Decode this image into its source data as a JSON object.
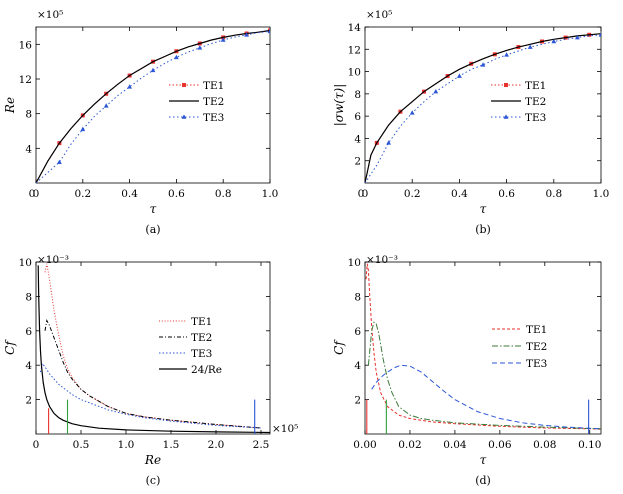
{
  "chart_data": [
    {
      "panel": "a",
      "type": "line",
      "caption": "(a)",
      "xlabel": "τ",
      "ylabel": "Re",
      "multiplier": "×10⁵",
      "xlim": [
        0,
        1.0
      ],
      "ylim": [
        0,
        18
      ],
      "xticks": [
        0,
        0.2,
        0.4,
        0.6,
        0.8,
        1.0
      ],
      "xtick_labels": [
        "0",
        "0.2",
        "0.4",
        "0.6",
        "0.8",
        "1.0"
      ],
      "yticks": [
        4,
        8,
        12,
        16
      ],
      "ytick_labels": [
        "4",
        "8",
        "12",
        "16"
      ],
      "legend_position": "right",
      "series": [
        {
          "name": "TE1",
          "color": "#e8322e",
          "dash": "1.5,2",
          "marker": "square",
          "markers_every": 2,
          "x": [
            0,
            0.05,
            0.1,
            0.15,
            0.2,
            0.25,
            0.3,
            0.35,
            0.4,
            0.45,
            0.5,
            0.55,
            0.6,
            0.65,
            0.7,
            0.75,
            0.8,
            0.85,
            0.9,
            0.95,
            1.0
          ],
          "y": [
            0,
            2.5,
            4.6,
            6.3,
            7.8,
            9.1,
            10.3,
            11.4,
            12.4,
            13.2,
            14.0,
            14.6,
            15.2,
            15.7,
            16.1,
            16.5,
            16.8,
            17.05,
            17.25,
            17.4,
            17.6
          ]
        },
        {
          "name": "TE2",
          "color": "#000000",
          "dash": "",
          "marker": "none",
          "x": [
            0,
            0.05,
            0.1,
            0.15,
            0.2,
            0.25,
            0.3,
            0.35,
            0.4,
            0.45,
            0.5,
            0.55,
            0.6,
            0.65,
            0.7,
            0.75,
            0.8,
            0.85,
            0.9,
            0.95,
            1.0
          ],
          "y": [
            0,
            2.5,
            4.6,
            6.3,
            7.8,
            9.1,
            10.3,
            11.4,
            12.4,
            13.2,
            14.0,
            14.6,
            15.2,
            15.7,
            16.1,
            16.5,
            16.8,
            17.05,
            17.25,
            17.4,
            17.6
          ]
        },
        {
          "name": "TE3",
          "color": "#2b56d4",
          "dash": "1.5,2.5",
          "marker": "triangle",
          "markers_every": 2,
          "x": [
            0,
            0.05,
            0.1,
            0.15,
            0.2,
            0.25,
            0.3,
            0.35,
            0.4,
            0.45,
            0.5,
            0.55,
            0.6,
            0.65,
            0.7,
            0.75,
            0.8,
            0.85,
            0.9,
            0.95,
            1.0
          ],
          "y": [
            0,
            1.2,
            2.4,
            4.5,
            6.2,
            7.7,
            8.9,
            10.1,
            11.1,
            12.1,
            13.0,
            13.8,
            14.5,
            15.1,
            15.6,
            16.1,
            16.5,
            16.85,
            17.1,
            17.35,
            17.5
          ]
        }
      ]
    },
    {
      "panel": "b",
      "type": "line",
      "caption": "(b)",
      "xlabel": "τ",
      "ylabel": "|σw(τ)|",
      "multiplier": "×10⁵",
      "xlim": [
        0,
        1.0
      ],
      "ylim": [
        0,
        14
      ],
      "xticks": [
        0,
        0.2,
        0.4,
        0.6,
        0.8,
        1.0
      ],
      "xtick_labels": [
        "0",
        "0.2",
        "0.4",
        "0.6",
        "0.8",
        "1.0"
      ],
      "yticks": [
        2,
        4,
        6,
        8,
        10,
        12,
        14
      ],
      "ytick_labels": [
        "2",
        "4",
        "6",
        "8",
        "10",
        "12",
        "14"
      ],
      "legend_position": "right",
      "series": [
        {
          "name": "TE1",
          "color": "#e8322e",
          "dash": "1.5,2",
          "marker": "square",
          "markers_every": 2,
          "x": [
            0,
            0.025,
            0.05,
            0.1,
            0.15,
            0.2,
            0.25,
            0.3,
            0.35,
            0.4,
            0.45,
            0.5,
            0.55,
            0.6,
            0.65,
            0.7,
            0.75,
            0.8,
            0.85,
            0.9,
            0.95,
            1.0
          ],
          "y": [
            0,
            2.5,
            3.6,
            5.2,
            6.4,
            7.3,
            8.2,
            8.9,
            9.6,
            10.2,
            10.7,
            11.15,
            11.55,
            11.9,
            12.2,
            12.45,
            12.7,
            12.9,
            13.05,
            13.2,
            13.3,
            13.4
          ]
        },
        {
          "name": "TE2",
          "color": "#000000",
          "dash": "",
          "marker": "none",
          "x": [
            0,
            0.025,
            0.05,
            0.1,
            0.15,
            0.2,
            0.25,
            0.3,
            0.35,
            0.4,
            0.45,
            0.5,
            0.55,
            0.6,
            0.65,
            0.7,
            0.75,
            0.8,
            0.85,
            0.9,
            0.95,
            1.0
          ],
          "y": [
            0,
            2.5,
            3.6,
            5.2,
            6.4,
            7.3,
            8.2,
            8.9,
            9.6,
            10.2,
            10.7,
            11.15,
            11.55,
            11.9,
            12.2,
            12.45,
            12.7,
            12.9,
            13.05,
            13.2,
            13.3,
            13.4
          ]
        },
        {
          "name": "TE3",
          "color": "#2b56d4",
          "dash": "1.5,2.5",
          "marker": "triangle",
          "markers_every": 2,
          "x": [
            0,
            0.05,
            0.1,
            0.15,
            0.2,
            0.25,
            0.3,
            0.35,
            0.4,
            0.45,
            0.5,
            0.55,
            0.6,
            0.65,
            0.7,
            0.75,
            0.8,
            0.85,
            0.9,
            0.95,
            1.0
          ],
          "y": [
            0,
            1.6,
            3.6,
            5.1,
            6.3,
            7.3,
            8.2,
            8.9,
            9.6,
            10.2,
            10.6,
            11.1,
            11.5,
            11.85,
            12.2,
            12.45,
            12.7,
            12.9,
            13.05,
            13.2,
            13.3
          ]
        }
      ]
    },
    {
      "panel": "c",
      "type": "line",
      "caption": "(c)",
      "xlabel": "Re",
      "ylabel": "Cf",
      "multiplier_y": "×10⁻³",
      "multiplier_x": "×10⁵",
      "xlim": [
        0,
        2.6
      ],
      "ylim": [
        0,
        10
      ],
      "xticks": [
        0,
        0.5,
        1.0,
        1.5,
        2.0,
        2.5
      ],
      "xtick_labels": [
        "0",
        "0.5",
        "1.0",
        "1.5",
        "2.0",
        "2.5"
      ],
      "yticks": [
        2,
        4,
        6,
        8,
        10
      ],
      "ytick_labels": [
        "2",
        "4",
        "6",
        "8",
        "10"
      ],
      "legend_position": "right",
      "series": [
        {
          "name": "TE1",
          "color": "#e8322e",
          "dash": "1,1.8",
          "x": [
            0.1,
            0.12,
            0.15,
            0.2,
            0.25,
            0.3,
            0.35,
            0.4,
            0.5,
            0.6,
            0.7,
            0.8,
            1.0,
            1.2,
            1.5,
            2.0,
            2.5
          ],
          "y": [
            9.4,
            9.9,
            9.0,
            7.2,
            5.8,
            4.6,
            3.8,
            3.3,
            2.6,
            2.2,
            1.9,
            1.6,
            1.2,
            1.0,
            0.8,
            0.55,
            0.35
          ]
        },
        {
          "name": "TE2",
          "color": "#000000",
          "dash": "4,2,1,2",
          "x": [
            0.1,
            0.12,
            0.15,
            0.2,
            0.25,
            0.3,
            0.35,
            0.4,
            0.5,
            0.6,
            0.7,
            0.8,
            1.0,
            1.2,
            1.5,
            2.0,
            2.5
          ],
          "y": [
            6.0,
            6.6,
            6.3,
            5.6,
            4.9,
            4.2,
            3.6,
            3.2,
            2.6,
            2.2,
            1.9,
            1.6,
            1.2,
            1.0,
            0.8,
            0.55,
            0.35
          ]
        },
        {
          "name": "TE3",
          "color": "#2b56d4",
          "dash": "1.5,2",
          "x": [
            0.05,
            0.07,
            0.1,
            0.15,
            0.2,
            0.25,
            0.3,
            0.4,
            0.5,
            0.6,
            0.8,
            1.0,
            1.2,
            1.5,
            2.0,
            2.5
          ],
          "y": [
            3.6,
            4.1,
            3.9,
            3.5,
            3.2,
            2.9,
            2.7,
            2.3,
            2.0,
            1.8,
            1.4,
            1.15,
            0.95,
            0.75,
            0.5,
            0.35
          ]
        },
        {
          "name": "24/Re",
          "color": "#000000",
          "dash": "",
          "x": [
            0.0245,
            0.03,
            0.04,
            0.05,
            0.06,
            0.08,
            0.1,
            0.12,
            0.15,
            0.2,
            0.25,
            0.3,
            0.4,
            0.5,
            0.7,
            1.0,
            1.5,
            2.0,
            2.6
          ],
          "y": [
            9.8,
            8.0,
            6.0,
            4.8,
            4.0,
            3.0,
            2.4,
            2.0,
            1.6,
            1.2,
            0.96,
            0.8,
            0.6,
            0.48,
            0.34,
            0.24,
            0.16,
            0.12,
            0.09
          ]
        }
      ],
      "vlines": [
        {
          "x": 0.14,
          "y": 1.5,
          "color": "#e8322e"
        },
        {
          "x": 0.35,
          "y": 2.0,
          "color": "#2e9e3a"
        },
        {
          "x": 2.43,
          "y": 2.0,
          "color": "#2b56d4"
        }
      ]
    },
    {
      "panel": "d",
      "type": "line",
      "caption": "(d)",
      "xlabel": "τ",
      "ylabel": "Cf",
      "multiplier_y": "×10⁻³",
      "xlim": [
        0,
        0.105
      ],
      "ylim": [
        0,
        10
      ],
      "xticks": [
        0,
        0.02,
        0.04,
        0.06,
        0.08,
        0.1
      ],
      "xtick_labels": [
        "0.00",
        "0.02",
        "0.04",
        "0.06",
        "0.08",
        "0.10"
      ],
      "yticks": [
        2,
        4,
        6,
        8,
        10
      ],
      "ytick_labels": [
        "2",
        "4",
        "6",
        "8",
        "10"
      ],
      "legend_position": "right",
      "series": [
        {
          "name": "TE1",
          "color": "#e8322e",
          "dash": "3,2",
          "x": [
            0.0005,
            0.001,
            0.0015,
            0.002,
            0.003,
            0.004,
            0.005,
            0.007,
            0.01,
            0.015,
            0.02,
            0.03,
            0.04,
            0.06,
            0.08,
            0.1,
            0.105
          ],
          "y": [
            9.0,
            9.9,
            9.5,
            8.3,
            6.2,
            4.7,
            3.6,
            2.4,
            1.6,
            1.1,
            0.9,
            0.7,
            0.6,
            0.45,
            0.35,
            0.3,
            0.28
          ]
        },
        {
          "name": "TE2",
          "color": "#3a7a3a",
          "dash": "6,2,1.5,2",
          "x": [
            0.0015,
            0.003,
            0.004,
            0.005,
            0.006,
            0.007,
            0.008,
            0.01,
            0.012,
            0.015,
            0.02,
            0.025,
            0.03,
            0.04,
            0.06,
            0.08,
            0.1,
            0.105
          ],
          "y": [
            4.0,
            6.0,
            6.5,
            6.4,
            5.9,
            5.2,
            4.4,
            3.2,
            2.4,
            1.6,
            1.1,
            0.9,
            0.8,
            0.65,
            0.5,
            0.4,
            0.32,
            0.3
          ]
        },
        {
          "name": "TE3",
          "color": "#2b56d4",
          "dash": "5,3",
          "x": [
            0.003,
            0.005,
            0.008,
            0.01,
            0.013,
            0.016,
            0.02,
            0.025,
            0.03,
            0.035,
            0.04,
            0.05,
            0.06,
            0.07,
            0.08,
            0.09,
            0.1,
            0.105
          ],
          "y": [
            2.6,
            3.0,
            3.4,
            3.6,
            3.85,
            4.0,
            3.95,
            3.6,
            3.05,
            2.5,
            2.0,
            1.3,
            0.9,
            0.65,
            0.5,
            0.4,
            0.33,
            0.3
          ]
        }
      ],
      "vlines": [
        {
          "x": 0.0008,
          "y": 2.0,
          "color": "#e8322e"
        },
        {
          "x": 0.0095,
          "y": 2.0,
          "color": "#2e9e3a"
        },
        {
          "x": 0.0995,
          "y": 2.0,
          "color": "#2b56d4"
        }
      ]
    }
  ]
}
